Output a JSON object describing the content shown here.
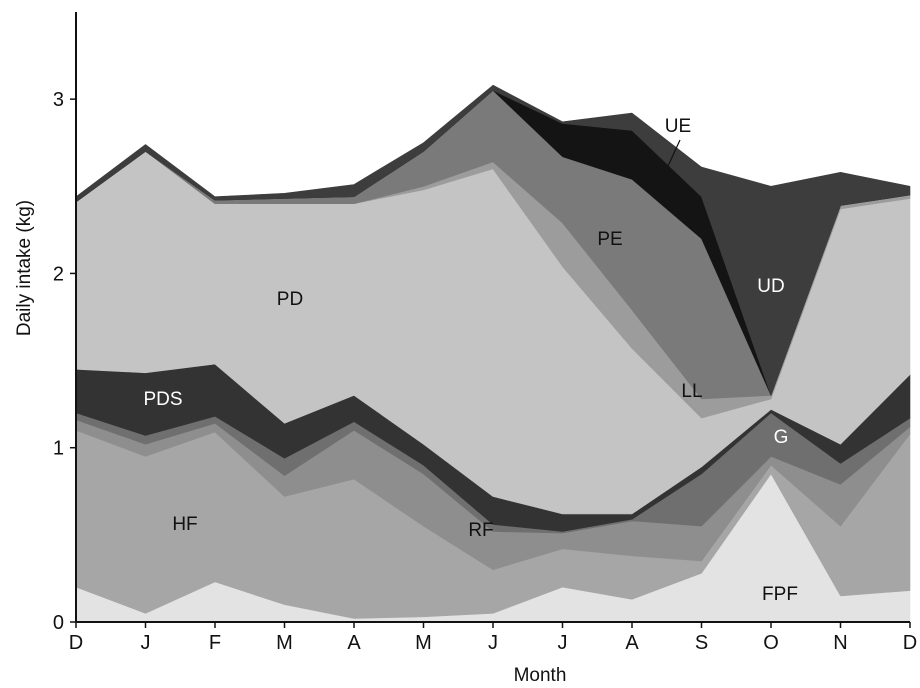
{
  "chart_data": {
    "type": "area",
    "stacked": true,
    "xlabel": "Month",
    "ylabel": "Daily intake (kg)",
    "x": [
      "D",
      "J",
      "F",
      "M",
      "A",
      "M",
      "J",
      "J",
      "A",
      "S",
      "O",
      "N",
      "D"
    ],
    "ylim": [
      0,
      3.5
    ],
    "yticks": [
      0,
      1,
      2,
      3
    ],
    "grid": false,
    "series": [
      {
        "name": "FPF",
        "color": "#e3e3e3",
        "values": [
          0.2,
          0.05,
          0.23,
          0.1,
          0.02,
          0.03,
          0.05,
          0.2,
          0.13,
          0.28,
          0.85,
          0.15,
          0.18
        ]
      },
      {
        "name": "HF",
        "color": "#a6a6a6",
        "values": [
          0.9,
          0.9,
          0.86,
          0.62,
          0.8,
          0.52,
          0.25,
          0.22,
          0.25,
          0.07,
          0.05,
          0.4,
          0.9
        ]
      },
      {
        "name": "RF",
        "color": "#8e8e8e",
        "values": [
          0.06,
          0.07,
          0.05,
          0.12,
          0.28,
          0.3,
          0.22,
          0.09,
          0.2,
          0.2,
          0.05,
          0.24,
          0.04
        ]
      },
      {
        "name": "G",
        "color": "#6f6f6f",
        "values": [
          0.04,
          0.05,
          0.04,
          0.1,
          0.05,
          0.05,
          0.04,
          0.01,
          0.01,
          0.3,
          0.25,
          0.12,
          0.05
        ]
      },
      {
        "name": "PDS",
        "color": "#333333",
        "values": [
          0.25,
          0.36,
          0.3,
          0.2,
          0.15,
          0.12,
          0.16,
          0.1,
          0.03,
          0.04,
          0.02,
          0.11,
          0.25
        ]
      },
      {
        "name": "PD",
        "color": "#c4c4c4",
        "values": [
          0.96,
          1.27,
          0.92,
          1.26,
          1.1,
          1.46,
          1.88,
          1.42,
          0.95,
          0.28,
          0.06,
          1.35,
          1.01
        ]
      },
      {
        "name": "LL",
        "color": "#9c9c9c",
        "values": [
          0.0,
          0.0,
          0.0,
          0.0,
          0.0,
          0.02,
          0.04,
          0.25,
          0.22,
          0.11,
          0.02,
          0.02,
          0.02
        ]
      },
      {
        "name": "PE",
        "color": "#7a7a7a",
        "values": [
          0.0,
          0.0,
          0.02,
          0.03,
          0.04,
          0.2,
          0.41,
          0.38,
          0.75,
          0.92,
          0.0,
          0.0,
          0.0
        ]
      },
      {
        "name": "UE",
        "color": "#141414",
        "values": [
          0.0,
          0.0,
          0.0,
          0.0,
          0.0,
          0.0,
          0.0,
          0.19,
          0.28,
          0.24,
          0.0,
          0.0,
          0.0
        ]
      },
      {
        "name": "UD",
        "color": "#3d3d3d",
        "values": [
          0.03,
          0.04,
          0.02,
          0.03,
          0.07,
          0.05,
          0.03,
          0.01,
          0.1,
          0.17,
          1.2,
          0.19,
          0.05
        ]
      }
    ],
    "annotations": [
      "FPF",
      "HF",
      "RF",
      "G",
      "PDS",
      "PD",
      "LL",
      "PE",
      "UE",
      "UD"
    ]
  }
}
